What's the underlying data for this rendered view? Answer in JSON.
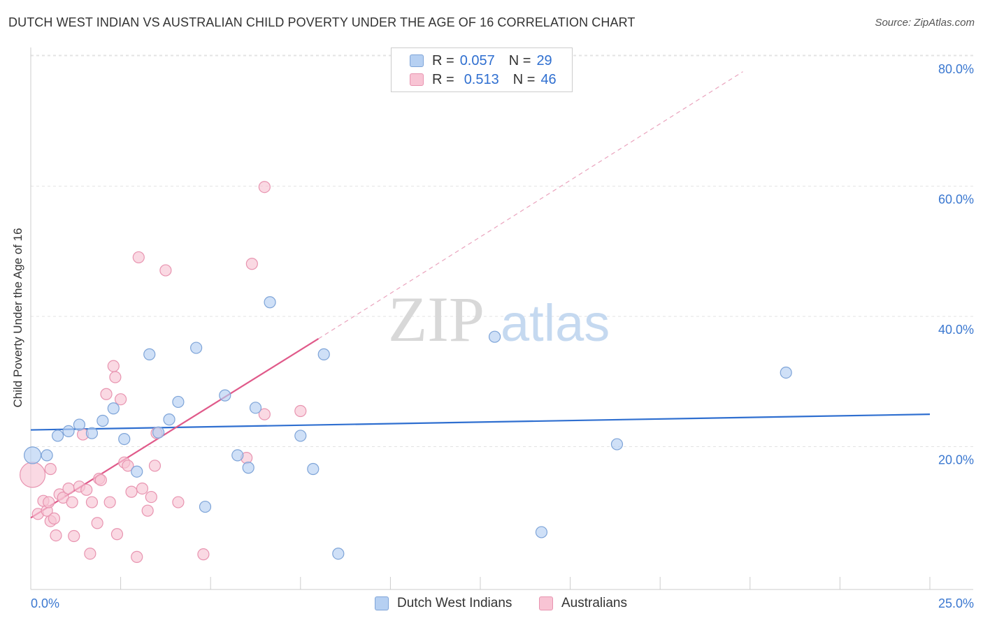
{
  "title": "DUTCH WEST INDIAN VS AUSTRALIAN CHILD POVERTY UNDER THE AGE OF 16 CORRELATION CHART",
  "source": "Source: ZipAtlas.com",
  "watermark": {
    "zip": "ZIP",
    "atlas": "atlas"
  },
  "legend": {
    "rows": [
      {
        "r_label": "R =",
        "r_value": "0.057",
        "n_label": "N =",
        "n_value": "29",
        "color": "#b6d0f2",
        "border": "#7ea4d8"
      },
      {
        "r_label": "R =",
        "r_value": "0.513",
        "n_label": "N =",
        "n_value": "46",
        "color": "#f8c4d4",
        "border": "#e894b0"
      }
    ]
  },
  "bottom_legend": {
    "series1": "Dutch West Indians",
    "series2": "Australians"
  },
  "chart_data": {
    "type": "scatter",
    "title": "DUTCH WEST INDIAN VS AUSTRALIAN CHILD POVERTY UNDER THE AGE OF 16 CORRELATION CHART",
    "xlabel": "",
    "ylabel": "Child Poverty Under the Age of 16",
    "xlim": [
      0,
      25
    ],
    "ylim": [
      0,
      80
    ],
    "x_tick_labels": [
      "0.0%",
      "25.0%"
    ],
    "y_ticks": [
      20,
      40,
      60,
      80
    ],
    "y_tick_labels": [
      "20.0%",
      "40.0%",
      "60.0%",
      "80.0%"
    ],
    "grid": true,
    "series": [
      {
        "name": "Dutch West Indians",
        "color": "#7ea4d8",
        "fill": "#b6d0f2",
        "line_color": "#2f6fd0",
        "trend": {
          "x0": 0,
          "y0": 24.5,
          "x1": 25,
          "y1": 26.9,
          "dashed_to": null
        },
        "points": [
          [
            0.05,
            20.6,
            12
          ],
          [
            0.45,
            20.6,
            8
          ],
          [
            0.75,
            23.6,
            8
          ],
          [
            1.05,
            24.3,
            8
          ],
          [
            1.35,
            25.3,
            8
          ],
          [
            1.7,
            24.0,
            8
          ],
          [
            2.0,
            25.9,
            8
          ],
          [
            2.3,
            27.8,
            8
          ],
          [
            2.6,
            23.1,
            8
          ],
          [
            2.95,
            18.1,
            8
          ],
          [
            3.3,
            36.1,
            8
          ],
          [
            3.55,
            24.1,
            8
          ],
          [
            3.85,
            26.1,
            8
          ],
          [
            4.1,
            28.8,
            8
          ],
          [
            4.6,
            37.1,
            8
          ],
          [
            4.85,
            12.7,
            8
          ],
          [
            5.4,
            29.8,
            8
          ],
          [
            5.75,
            20.6,
            8
          ],
          [
            6.05,
            18.7,
            8
          ],
          [
            6.25,
            27.9,
            8
          ],
          [
            6.65,
            44.1,
            8
          ],
          [
            7.5,
            23.6,
            8
          ],
          [
            7.85,
            18.5,
            8
          ],
          [
            8.15,
            36.1,
            8
          ],
          [
            8.55,
            5.5,
            8
          ],
          [
            12.9,
            38.8,
            8
          ],
          [
            14.2,
            8.8,
            8
          ],
          [
            16.3,
            22.3,
            8
          ],
          [
            21.0,
            33.3,
            8
          ]
        ]
      },
      {
        "name": "Australians",
        "color": "#e894b0",
        "fill": "#f8c4d4",
        "line_color": "#e05a8a",
        "trend": {
          "x0": 0,
          "y0": 11.0,
          "x1": 8.0,
          "y1": 38.5,
          "dashed_to": [
            19.8,
            79.5
          ]
        },
        "points": [
          [
            0.05,
            17.6,
            18
          ],
          [
            0.2,
            11.6,
            8
          ],
          [
            0.35,
            13.6,
            8
          ],
          [
            0.45,
            12.1,
            8
          ],
          [
            0.5,
            13.4,
            8
          ],
          [
            0.55,
            18.5,
            8
          ],
          [
            0.55,
            10.5,
            8
          ],
          [
            0.65,
            10.9,
            8
          ],
          [
            0.7,
            8.3,
            8
          ],
          [
            0.8,
            14.6,
            8
          ],
          [
            0.9,
            14.1,
            8
          ],
          [
            1.05,
            15.5,
            8
          ],
          [
            1.15,
            13.4,
            8
          ],
          [
            1.2,
            8.2,
            8
          ],
          [
            1.35,
            15.8,
            8
          ],
          [
            1.45,
            23.8,
            8
          ],
          [
            1.55,
            15.3,
            8
          ],
          [
            1.65,
            5.5,
            8
          ],
          [
            1.7,
            13.4,
            8
          ],
          [
            1.85,
            10.2,
            8
          ],
          [
            1.9,
            17.0,
            8
          ],
          [
            1.95,
            16.8,
            8
          ],
          [
            2.1,
            30.0,
            8
          ],
          [
            2.2,
            13.4,
            8
          ],
          [
            2.3,
            34.3,
            8
          ],
          [
            2.35,
            32.6,
            8
          ],
          [
            2.4,
            8.5,
            8
          ],
          [
            2.5,
            29.2,
            8
          ],
          [
            2.6,
            19.5,
            8
          ],
          [
            2.7,
            19.0,
            8
          ],
          [
            2.8,
            15.0,
            8
          ],
          [
            2.95,
            5.0,
            8
          ],
          [
            3.0,
            51.0,
            8
          ],
          [
            3.1,
            15.5,
            8
          ],
          [
            3.25,
            12.1,
            8
          ],
          [
            3.35,
            14.2,
            8
          ],
          [
            3.45,
            19.0,
            8
          ],
          [
            3.5,
            24.0,
            8
          ],
          [
            3.75,
            49.0,
            8
          ],
          [
            4.1,
            13.4,
            8
          ],
          [
            4.8,
            5.4,
            8
          ],
          [
            6.0,
            20.2,
            8
          ],
          [
            6.15,
            50.0,
            8
          ],
          [
            6.5,
            26.9,
            8
          ],
          [
            6.5,
            61.8,
            8
          ],
          [
            7.5,
            27.4,
            8
          ]
        ]
      }
    ]
  }
}
